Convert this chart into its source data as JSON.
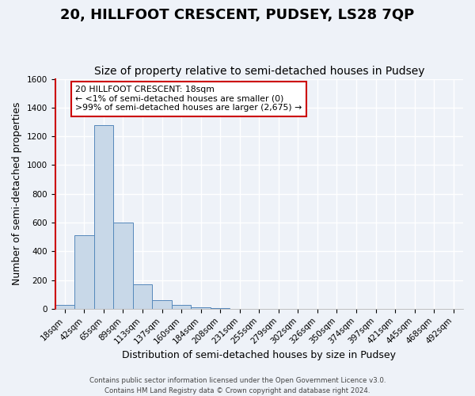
{
  "title": "20, HILLFOOT CRESCENT, PUDSEY, LS28 7QP",
  "subtitle": "Size of property relative to semi-detached houses in Pudsey",
  "xlabel": "Distribution of semi-detached houses by size in Pudsey",
  "ylabel": "Number of semi-detached properties",
  "footer_line1": "Contains HM Land Registry data © Crown copyright and database right 2024.",
  "footer_line2": "Contains public sector information licensed under the Open Government Licence v3.0.",
  "bin_labels": [
    "18sqm",
    "42sqm",
    "65sqm",
    "89sqm",
    "113sqm",
    "137sqm",
    "160sqm",
    "184sqm",
    "208sqm",
    "231sqm",
    "255sqm",
    "279sqm",
    "302sqm",
    "326sqm",
    "350sqm",
    "374sqm",
    "397sqm",
    "421sqm",
    "445sqm",
    "468sqm",
    "492sqm"
  ],
  "bar_heights": [
    25,
    510,
    1280,
    600,
    170,
    60,
    28,
    8,
    3,
    1,
    0,
    0,
    0,
    0,
    0,
    0,
    0,
    0,
    0,
    0,
    0
  ],
  "bar_color": "#c8d8e8",
  "bar_edge_color": "#5588bb",
  "ylim": [
    0,
    1600
  ],
  "yticks": [
    0,
    200,
    400,
    600,
    800,
    1000,
    1200,
    1400,
    1600
  ],
  "annotation_title": "20 HILLFOOT CRESCENT: 18sqm",
  "annotation_line1": "← <1% of semi-detached houses are smaller (0)",
  "annotation_line2": ">99% of semi-detached houses are larger (2,675) →",
  "annotation_box_color": "#ffffff",
  "annotation_box_edge": "#cc0000",
  "background_color": "#eef2f8",
  "plot_background": "#eef2f8",
  "grid_color": "#ffffff",
  "title_fontsize": 13,
  "subtitle_fontsize": 10,
  "axis_label_fontsize": 9,
  "tick_fontsize": 7.5
}
